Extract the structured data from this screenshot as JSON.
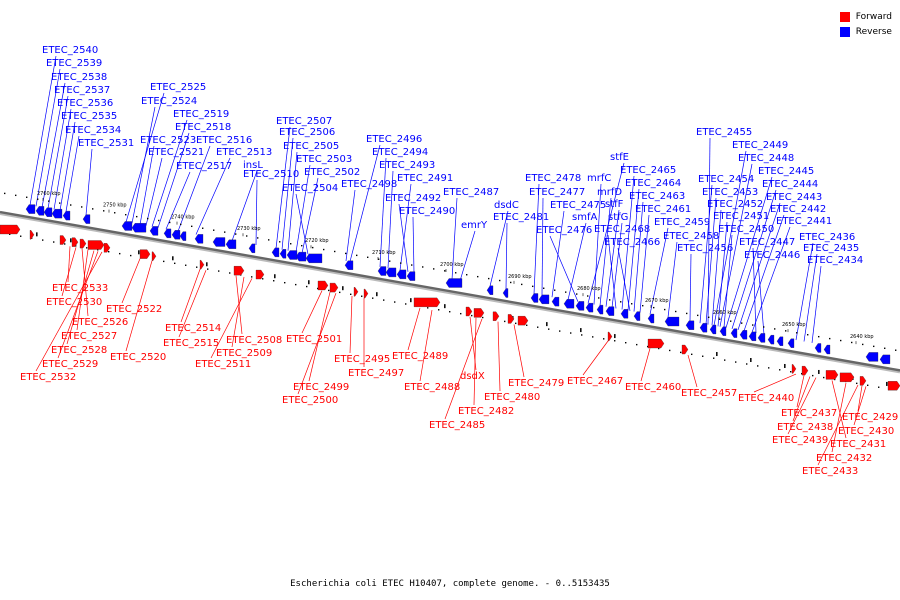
{
  "caption": "Escherichia coli ETEC H10407, complete genome. - 0..5153435",
  "legend": [
    {
      "label": "Forward",
      "color": "#ff0000"
    },
    {
      "label": "Reverse",
      "color": "#0000ff"
    }
  ],
  "colors": {
    "forward": "#ff0000",
    "reverse": "#0000ff",
    "backbone": "#666666"
  },
  "ticks": [
    "2760 kbp",
    "2750 kbp",
    "2740 kbp",
    "2730 kbp",
    "2720 kbp",
    "2710 kbp",
    "2700 kbp",
    "2690 kbp",
    "2680 kbp",
    "2670 kbp",
    "2660 kbp",
    "2650 kbp",
    "2640 kbp"
  ],
  "reverse_labels": [
    "ETEC_2540",
    "ETEC_2539",
    "ETEC_2538",
    "ETEC_2537",
    "ETEC_2536",
    "ETEC_2535",
    "ETEC_2534",
    "ETEC_2531",
    "ETEC_2525",
    "ETEC_2524",
    "ETEC_2519",
    "ETEC_2518",
    "ETEC_2523",
    "ETEC_2516",
    "ETEC_2521",
    "ETEC_2513",
    "ETEC_2517",
    "insL",
    "ETEC_2510",
    "ETEC_2507",
    "ETEC_2506",
    "ETEC_2505",
    "ETEC_2503",
    "ETEC_2502",
    "ETEC_2504",
    "ETEC_2496",
    "ETEC_2494",
    "ETEC_2493",
    "ETEC_2498",
    "ETEC_2491",
    "ETEC_2492",
    "ETEC_2490",
    "ETEC_2487",
    "emrY",
    "dsdC",
    "ETEC_2481",
    "ETEC_2478",
    "ETEC_2477",
    "ETEC_2475",
    "smfA",
    "ETEC_2476",
    "stfE",
    "mrfC",
    "mrfD",
    "stfF",
    "stfG",
    "ETEC_2465",
    "ETEC_2464",
    "ETEC_2463",
    "ETEC_2461",
    "ETEC_2468",
    "ETEC_2466",
    "ETEC_2459",
    "ETEC_2458",
    "ETEC_2456",
    "ETEC_2455",
    "ETEC_2449",
    "ETEC_2448",
    "ETEC_2454",
    "ETEC_2445",
    "ETEC_2453",
    "ETEC_2444",
    "ETEC_2452",
    "ETEC_2443",
    "ETEC_2451",
    "ETEC_2442",
    "ETEC_2450",
    "ETEC_2441",
    "ETEC_2447",
    "ETEC_2446",
    "ETEC_2436",
    "ETEC_2435",
    "ETEC_2434"
  ],
  "forward_labels": [
    "ETEC_2533",
    "ETEC_2530",
    "ETEC_2526",
    "ETEC_2527",
    "ETEC_2528",
    "ETEC_2529",
    "ETEC_2532",
    "ETEC_2522",
    "ETEC_2520",
    "ETEC_2514",
    "ETEC_2515",
    "ETEC_2508",
    "ETEC_2509",
    "ETEC_2511",
    "ETEC_2501",
    "ETEC_2499",
    "ETEC_2500",
    "ETEC_2495",
    "ETEC_2497",
    "ETEC_2489",
    "ETEC_2488",
    "dsdX",
    "ETEC_2482",
    "ETEC_2485",
    "ETEC_2480",
    "ETEC_2479",
    "ETEC_2467",
    "ETEC_2460",
    "ETEC_2457",
    "ETEC_2440",
    "ETEC_2437",
    "ETEC_2438",
    "ETEC_2439",
    "ETEC_2431",
    "ETEC_2432",
    "ETEC_2433",
    "ETEC_2429",
    "ETEC_2430"
  ]
}
